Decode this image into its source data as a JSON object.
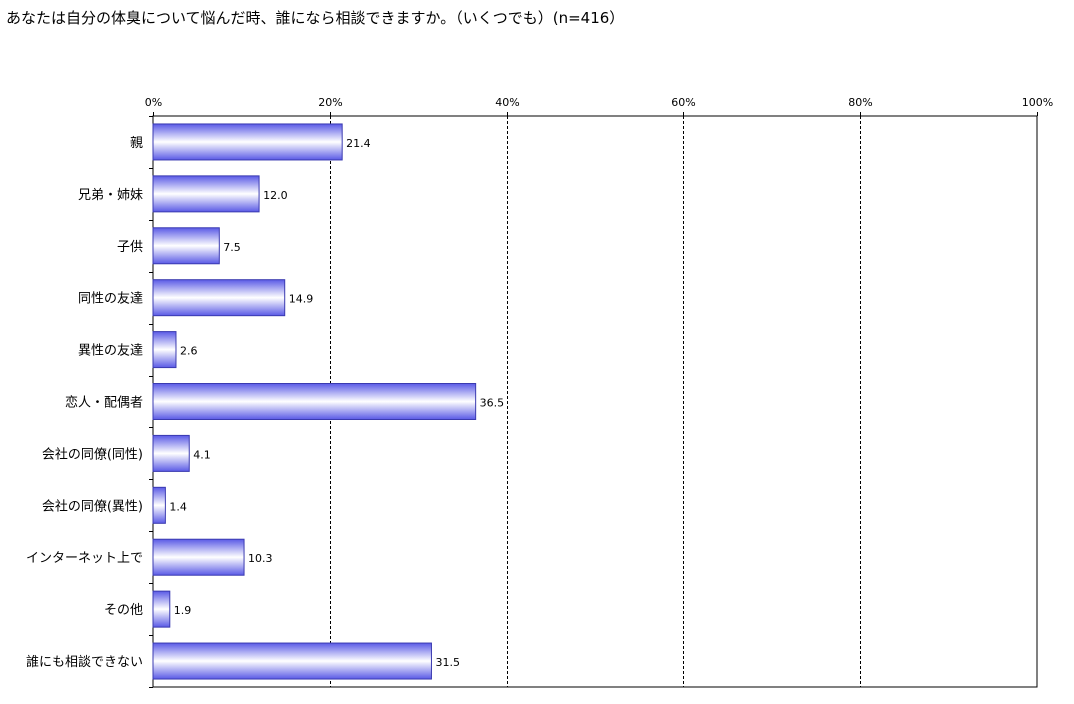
{
  "chart_data": {
    "type": "bar",
    "orientation": "horizontal",
    "title": "あなたは自分の体臭について悩んだ時、誰になら相談できますか。（いくつでも）(n=416）",
    "categories": [
      "親",
      "兄弟・姉妹",
      "子供",
      "同性の友達",
      "異性の友達",
      "恋人・配偶者",
      "会社の同僚(同性)",
      "会社の同僚(異性)",
      "インターネット上で",
      "その他",
      "誰にも相談できない"
    ],
    "values": [
      21.4,
      12.0,
      7.5,
      14.9,
      2.6,
      36.5,
      4.1,
      1.4,
      10.3,
      1.9,
      31.5
    ],
    "value_labels": [
      "21.4",
      "12.0",
      "7.5",
      "14.9",
      "2.6",
      "36.5",
      "4.1",
      "1.4",
      "10.3",
      "1.9",
      "31.5"
    ],
    "xlim": [
      0,
      100
    ],
    "x_ticks": [
      0,
      20,
      40,
      60,
      80,
      100
    ],
    "x_tick_labels": [
      "0%",
      "20%",
      "40%",
      "60%",
      "80%",
      "100%"
    ],
    "xlabel": "",
    "ylabel": "",
    "grid": true,
    "legend": "none",
    "colors": {
      "bar_edge": "#3a3ab0",
      "bar_light": "#ffffff",
      "bar_dark": "#5a5ae6",
      "gridline": "#000000"
    }
  }
}
